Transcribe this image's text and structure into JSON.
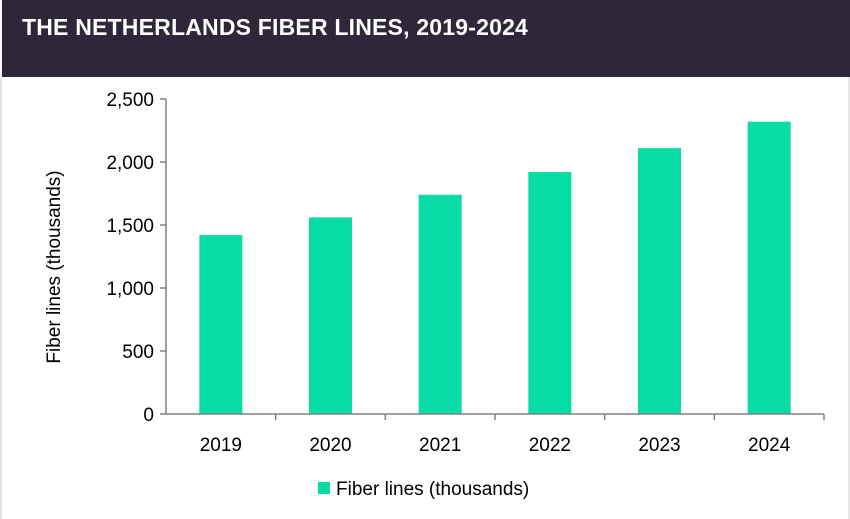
{
  "header": {
    "title": "THE NETHERLANDS FIBER LINES, 2019-2024"
  },
  "colors": {
    "header_bg": "#2e2639",
    "bar": "#06dca4",
    "axis": "#808080"
  },
  "chart_data": {
    "type": "bar",
    "title": "THE NETHERLANDS FIBER LINES, 2019-2024",
    "xlabel": "",
    "ylabel": "Fiber lines (thousands)",
    "categories": [
      "2019",
      "2020",
      "2021",
      "2022",
      "2023",
      "2024"
    ],
    "series": [
      {
        "name": "Fiber lines (thousands)",
        "values": [
          1420,
          1560,
          1740,
          1920,
          2110,
          2320
        ]
      }
    ],
    "ylim": [
      0,
      2500
    ],
    "yticks": [
      0,
      500,
      1000,
      1500,
      2000,
      2500
    ],
    "ytick_labels": [
      "0",
      "500",
      "1,000",
      "1,500",
      "2,000",
      "2,500"
    ],
    "grid": false,
    "legend_position": "bottom"
  }
}
